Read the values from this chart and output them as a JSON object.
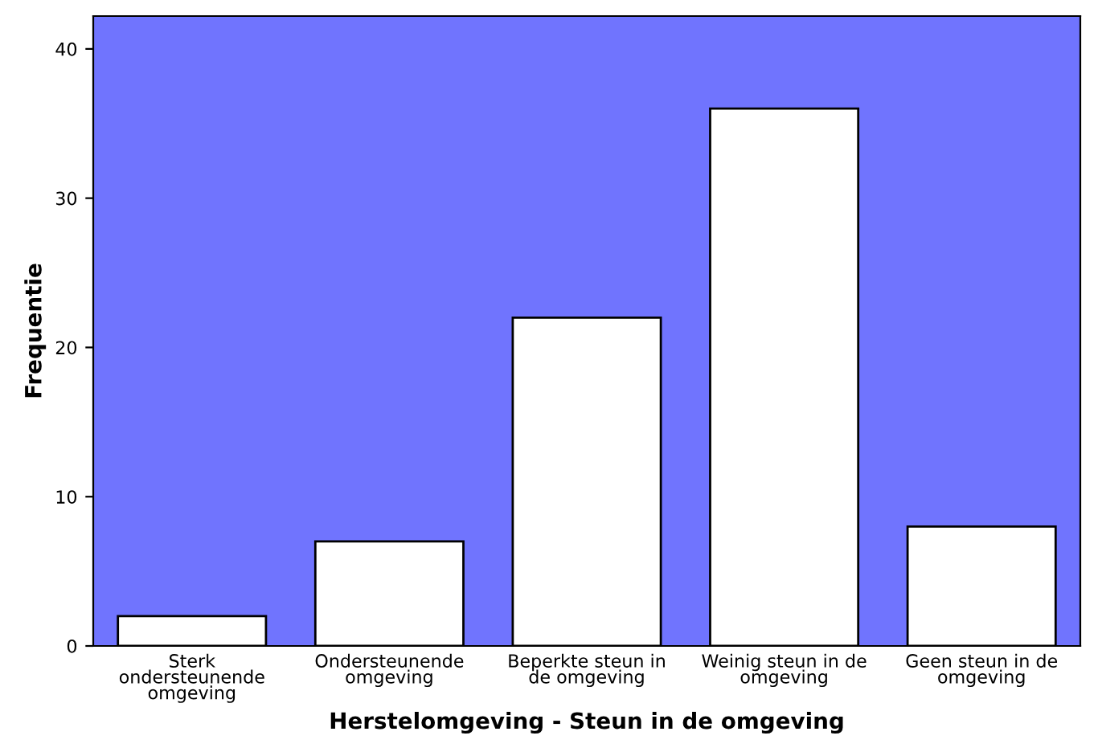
{
  "chart_data": {
    "type": "bar",
    "xlabel": "Herstelomgeving - Steun in de omgeving",
    "ylabel": "Frequentie",
    "categories": [
      "Sterk\nondersteunende\nomgeving",
      "Ondersteunende\nomgeving",
      "Beperkte steun in\nde omgeving",
      "Weinig steun in de\nomgeving",
      "Geen steun in de\nomgeving"
    ],
    "values": [
      2,
      7,
      22,
      36,
      8
    ],
    "color": "#ffffff",
    "ylim": [
      0,
      42.2
    ],
    "yticks": [
      0,
      10,
      20,
      30,
      40
    ],
    "grid": false,
    "legend": false
  }
}
